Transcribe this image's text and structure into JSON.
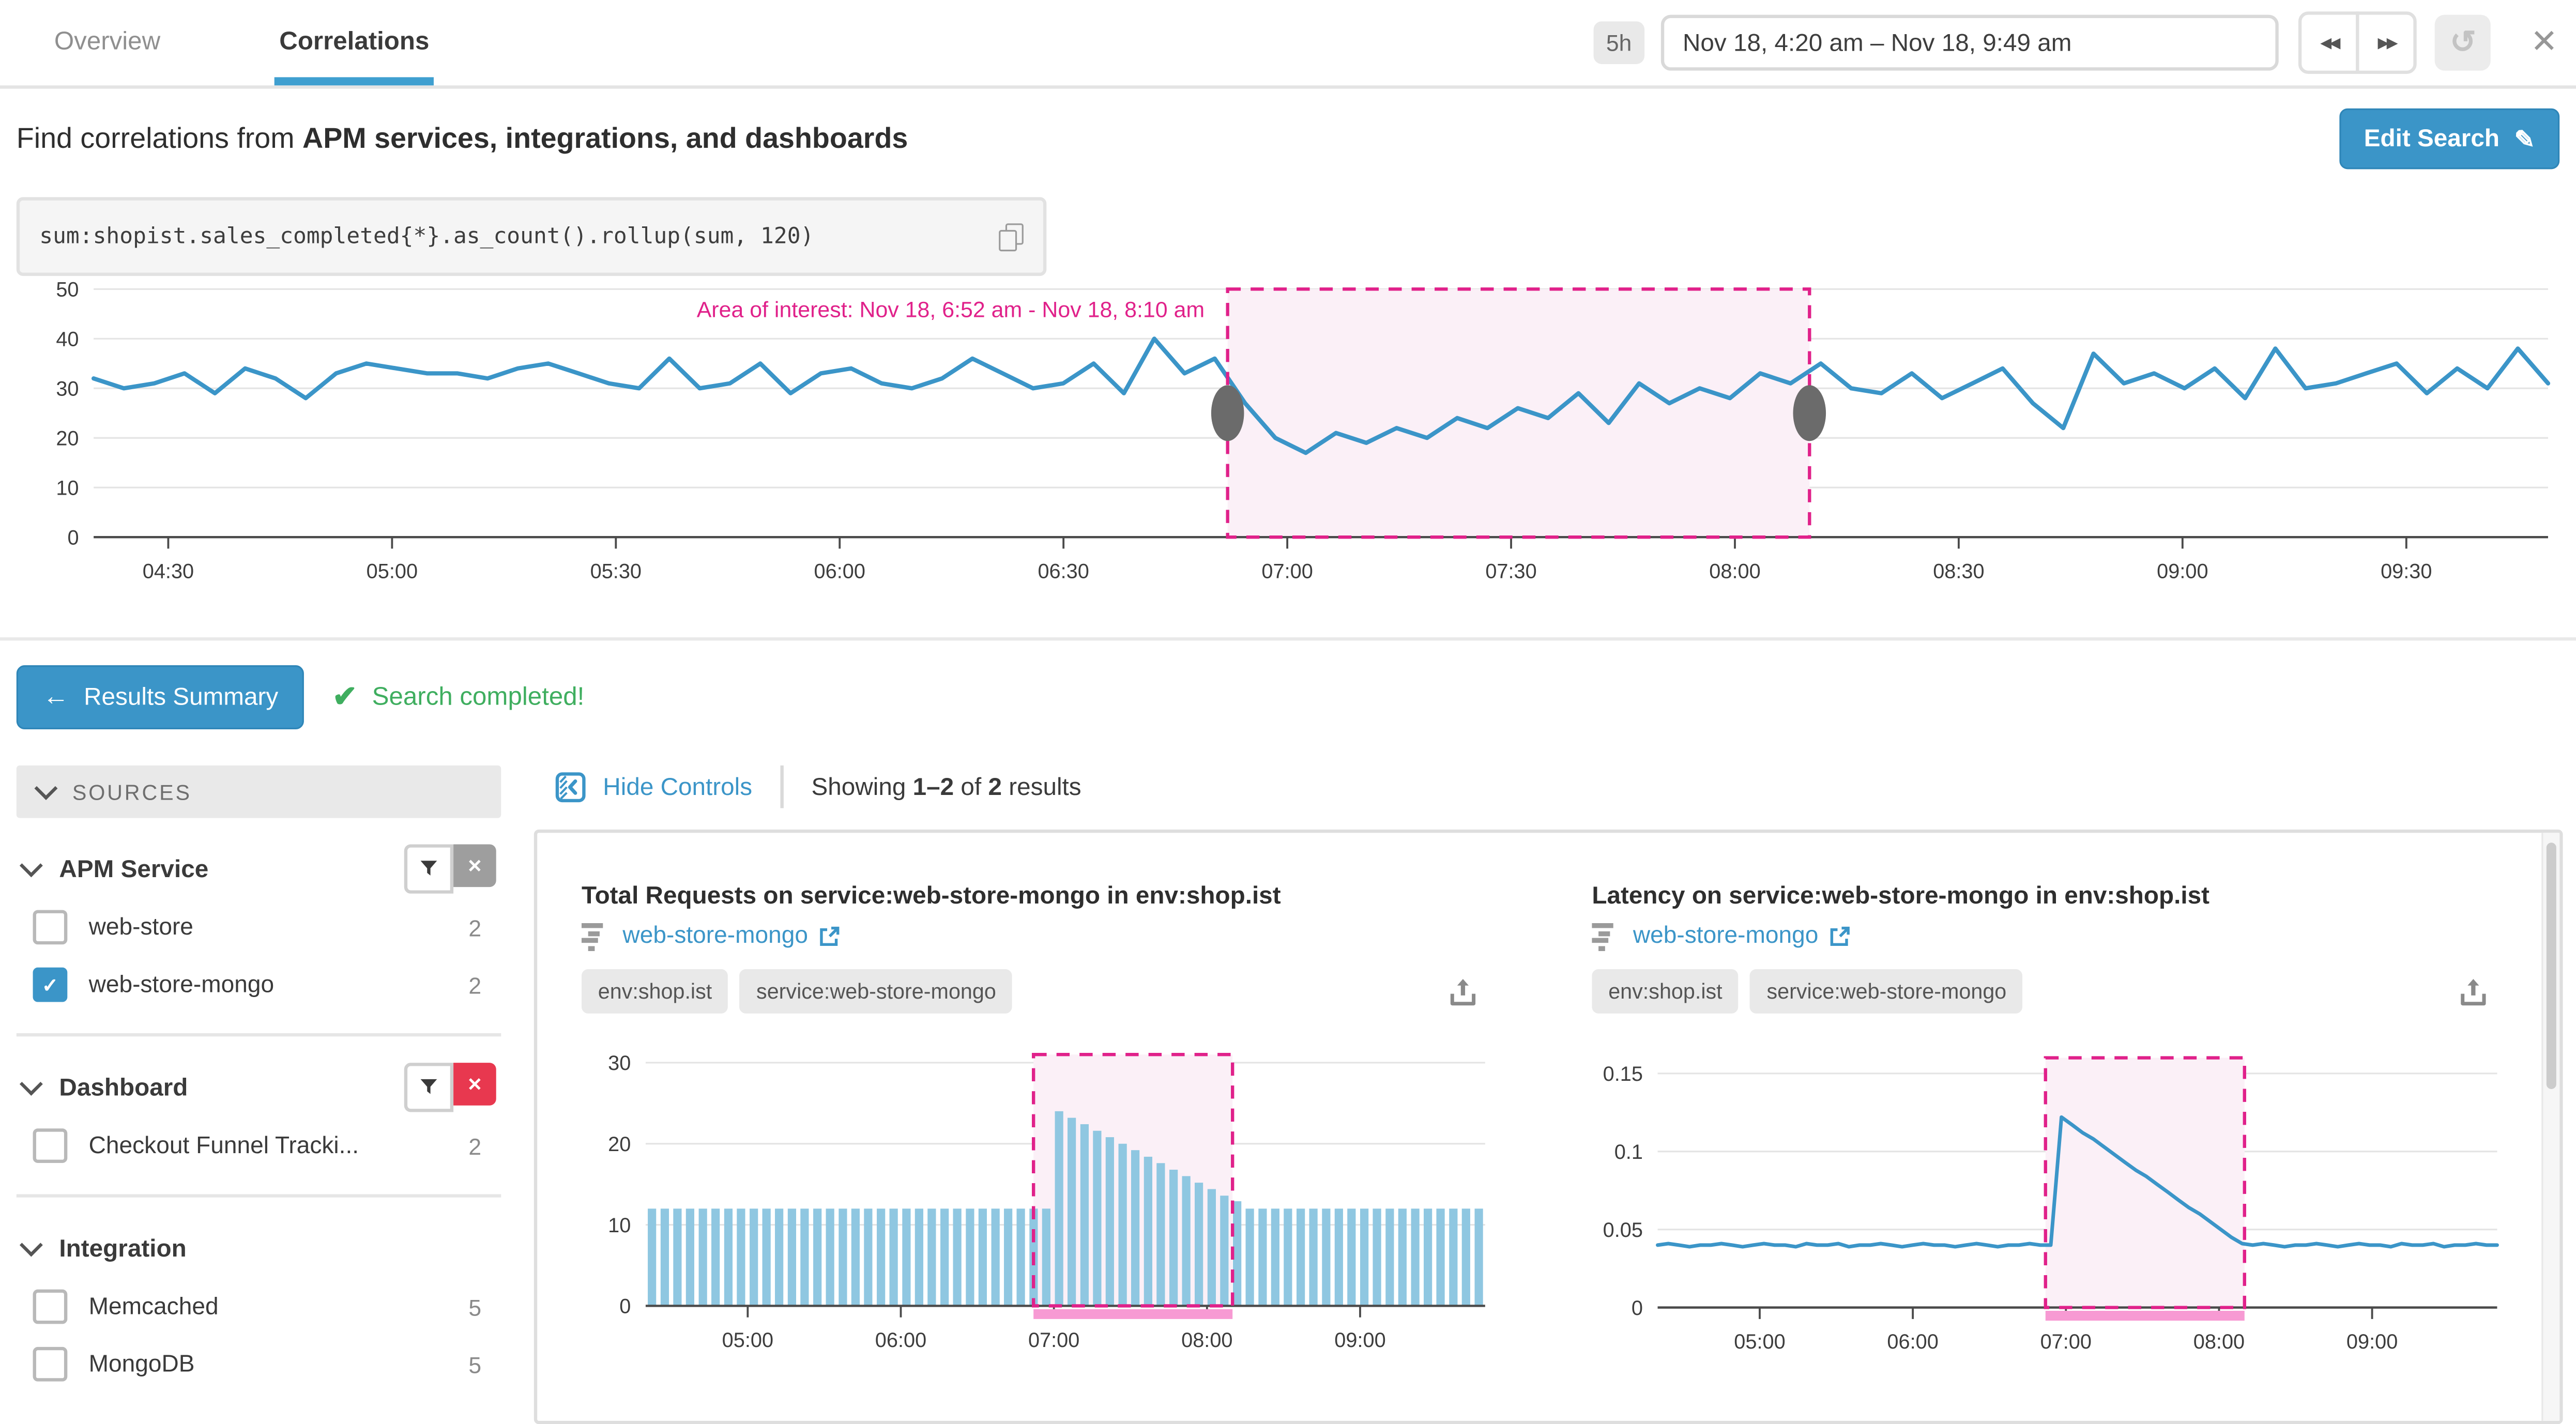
{
  "topbar": {
    "tabs": [
      {
        "label": "Overview"
      },
      {
        "label": "Correlations"
      }
    ],
    "active_tab": "Correlations",
    "time_preset": "5h",
    "time_range": "Nov 18, 4:20 am – Nov 18, 9:49 am"
  },
  "search_header": {
    "text_prefix": "Find correlations from ",
    "text_bold": "APM services, integrations, and dashboards",
    "edit_button": "Edit Search"
  },
  "query": {
    "text": "sum:shopist.sales_completed{*}.as_count().rollup(sum, 120)"
  },
  "results_bar": {
    "back_button": "Results Summary",
    "status": "Search completed!"
  },
  "sidebar": {
    "title": "SOURCES",
    "groups": [
      {
        "name": "APM Service",
        "filter_active": false,
        "items": [
          {
            "label": "web-store",
            "count": "2",
            "checked": false
          },
          {
            "label": "web-store-mongo",
            "count": "2",
            "checked": true
          }
        ]
      },
      {
        "name": "Dashboard",
        "filter_active": true,
        "items": [
          {
            "label": "Checkout Funnel Tracki...",
            "count": "2",
            "checked": false
          }
        ]
      },
      {
        "name": "Integration",
        "filter_active": false,
        "items": [
          {
            "label": "Memcached",
            "count": "5",
            "checked": false
          },
          {
            "label": "MongoDB",
            "count": "5",
            "checked": false
          }
        ]
      }
    ]
  },
  "results": {
    "hide_controls": "Hide Controls",
    "showing_prefix": "Showing ",
    "showing_range": "1–2",
    "showing_of": " of ",
    "showing_total": "2",
    "showing_suffix": " results"
  },
  "cards": [
    {
      "title": "Total Requests on service:web-store-mongo in env:shop.ist",
      "link": "web-store-mongo",
      "tags": [
        "env:shop.ist",
        "service:web-store-mongo"
      ]
    },
    {
      "title": "Latency on service:web-store-mongo in env:shop.ist",
      "link": "web-store-mongo",
      "tags": [
        "env:shop.ist",
        "service:web-store-mongo"
      ]
    }
  ],
  "icons": {
    "check": "✓",
    "big_check": "✔",
    "pencil": "✎",
    "close": "✕",
    "back_arrow": "←",
    "refresh": "↺",
    "prev": "◀◀",
    "next": "▶▶",
    "filter_x": "✕"
  },
  "colors": {
    "accent": "#3b95c8",
    "magenta": "#e0218a",
    "aoi_fill": "#fbf0f7",
    "pink_bar": "#f79ad3",
    "green": "#3fae5f",
    "red": "#e8384f",
    "bar_blue": "#8fc7e1",
    "handle_gray": "#6b6b6b"
  },
  "chart_data": [
    {
      "type": "line",
      "title": "sum:shopist.sales_completed{*}.as_count().rollup(sum, 120)",
      "x_start": "04:20",
      "x_end": "09:49",
      "x_ticks": [
        "04:30",
        "05:00",
        "05:30",
        "06:00",
        "06:30",
        "07:00",
        "07:30",
        "08:00",
        "08:30",
        "09:00",
        "09:30"
      ],
      "y_ticks": [
        "0",
        "10",
        "20",
        "30",
        "40",
        "50"
      ],
      "ylim": [
        0,
        50
      ],
      "line_color": "#3b95c8",
      "values": [
        32,
        30,
        31,
        33,
        29,
        34,
        32,
        28,
        33,
        35,
        34,
        33,
        33,
        32,
        34,
        35,
        33,
        31,
        30,
        36,
        30,
        31,
        35,
        29,
        33,
        34,
        31,
        30,
        32,
        36,
        33,
        30,
        31,
        35,
        29,
        40,
        33,
        36,
        27,
        20,
        17,
        21,
        19,
        22,
        20,
        24,
        22,
        26,
        24,
        29,
        23,
        31,
        27,
        30,
        28,
        33,
        31,
        35,
        30,
        29,
        33,
        28,
        31,
        34,
        27,
        22,
        37,
        31,
        33,
        30,
        34,
        28,
        38,
        30,
        31,
        33,
        35,
        29,
        34,
        30,
        38,
        31
      ],
      "aoi": {
        "label": "Area of interest: Nov 18, 6:52 am - Nov 18, 8:10 am",
        "start": "06:52",
        "end": "08:10",
        "handles": true
      }
    },
    {
      "type": "bar",
      "title": "Total Requests on service:web-store-mongo in env:shop.ist",
      "x_start": "04:20",
      "x_end": "09:49",
      "x_ticks": [
        "05:00",
        "06:00",
        "07:00",
        "08:00",
        "09:00"
      ],
      "y_ticks": [
        "0",
        "10",
        "20",
        "30"
      ],
      "ylim": [
        0,
        31
      ],
      "bar_color": "#8fc7e1",
      "values": [
        12,
        12,
        12,
        12,
        12,
        12,
        12,
        12,
        12,
        12,
        12,
        12,
        12,
        12,
        12,
        12,
        12,
        12,
        12,
        12,
        12,
        12,
        12,
        12,
        12,
        12,
        12,
        12,
        12,
        12,
        12,
        12,
        24,
        23.2,
        22.4,
        21.6,
        20.8,
        20,
        19.2,
        18.4,
        17.6,
        16.8,
        16,
        15.2,
        14.4,
        13.6,
        12.9,
        12,
        12,
        12,
        12,
        12,
        12,
        12,
        12,
        12,
        12,
        12,
        12,
        12,
        12,
        12,
        12,
        12,
        12,
        12
      ],
      "aoi": {
        "start": "06:52",
        "end": "08:10",
        "bottom_bar": true
      }
    },
    {
      "type": "line",
      "title": "Latency on service:web-store-mongo in env:shop.ist",
      "x_start": "04:20",
      "x_end": "09:49",
      "x_ticks": [
        "05:00",
        "06:00",
        "07:00",
        "08:00",
        "09:00"
      ],
      "y_ticks": [
        "0",
        "0.05",
        "0.1",
        "0.15"
      ],
      "ylim": [
        0,
        0.16
      ],
      "line_color": "#3b95c8",
      "values": [
        0.04,
        0.041,
        0.04,
        0.039,
        0.04,
        0.04,
        0.041,
        0.04,
        0.039,
        0.04,
        0.041,
        0.04,
        0.04,
        0.039,
        0.041,
        0.04,
        0.04,
        0.041,
        0.039,
        0.04,
        0.04,
        0.041,
        0.04,
        0.039,
        0.04,
        0.041,
        0.04,
        0.04,
        0.039,
        0.04,
        0.041,
        0.04,
        0.039,
        0.04,
        0.04,
        0.041,
        0.04,
        0.04,
        0.122,
        0.117,
        0.112,
        0.108,
        0.103,
        0.098,
        0.093,
        0.088,
        0.084,
        0.079,
        0.074,
        0.069,
        0.064,
        0.06,
        0.055,
        0.05,
        0.045,
        0.041,
        0.04,
        0.041,
        0.04,
        0.039,
        0.04,
        0.04,
        0.041,
        0.04,
        0.039,
        0.04,
        0.041,
        0.04,
        0.04,
        0.039,
        0.041,
        0.04,
        0.04,
        0.041,
        0.039,
        0.04,
        0.04,
        0.041,
        0.04,
        0.04
      ],
      "aoi": {
        "start": "06:52",
        "end": "08:10",
        "bottom_bar": true
      }
    }
  ]
}
